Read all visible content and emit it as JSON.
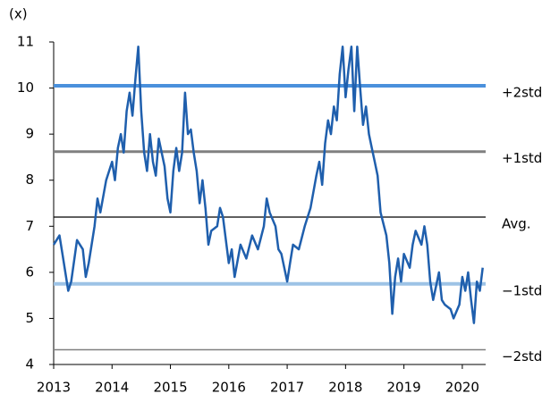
{
  "chart_data": {
    "type": "line",
    "y_unit_label": "(x)",
    "xlim": [
      2013,
      2020.4
    ],
    "xticks": [
      2013,
      2014,
      2015,
      2016,
      2017,
      2018,
      2019,
      2020
    ],
    "ylim": [
      4,
      11
    ],
    "yticks": [
      4,
      5,
      6,
      7,
      8,
      9,
      10,
      11
    ],
    "reference_lines": [
      {
        "name": "+2std",
        "value": 10.05,
        "color": "#4a90dc",
        "width": 4
      },
      {
        "name": "+1std",
        "value": 8.62,
        "color": "#808080",
        "width": 3
      },
      {
        "name": "Avg.",
        "value": 7.2,
        "color": "#000000",
        "width": 1.2
      },
      {
        "name": "−1std",
        "value": 5.75,
        "color": "#9dc3e6",
        "width": 4
      },
      {
        "name": "−2std",
        "value": 4.32,
        "color": "#808080",
        "width": 1.5
      }
    ],
    "series": [
      {
        "color": "#1f5fad",
        "x": [
          2013.0,
          2013.1,
          2013.15,
          2013.25,
          2013.3,
          2013.4,
          2013.5,
          2013.55,
          2013.6,
          2013.7,
          2013.75,
          2013.8,
          2013.9,
          2014.0,
          2014.05,
          2014.1,
          2014.15,
          2014.2,
          2014.25,
          2014.3,
          2014.35,
          2014.4,
          2014.45,
          2014.5,
          2014.55,
          2014.6,
          2014.65,
          2014.7,
          2014.75,
          2014.8,
          2014.9,
          2014.95,
          2015.0,
          2015.05,
          2015.1,
          2015.15,
          2015.2,
          2015.25,
          2015.3,
          2015.35,
          2015.4,
          2015.45,
          2015.5,
          2015.55,
          2015.6,
          2015.65,
          2015.7,
          2015.8,
          2015.85,
          2015.9,
          2016.0,
          2016.05,
          2016.1,
          2016.2,
          2016.3,
          2016.4,
          2016.5,
          2016.6,
          2016.65,
          2016.7,
          2016.8,
          2016.85,
          2016.9,
          2017.0,
          2017.05,
          2017.1,
          2017.2,
          2017.3,
          2017.4,
          2017.5,
          2017.55,
          2017.6,
          2017.65,
          2017.7,
          2017.75,
          2017.8,
          2017.85,
          2017.9,
          2017.95,
          2018.0,
          2018.05,
          2018.1,
          2018.15,
          2018.2,
          2018.25,
          2018.3,
          2018.35,
          2018.4,
          2018.45,
          2018.5,
          2018.55,
          2018.6,
          2018.7,
          2018.75,
          2018.8,
          2018.85,
          2018.9,
          2018.95,
          2019.0,
          2019.1,
          2019.15,
          2019.2,
          2019.3,
          2019.35,
          2019.4,
          2019.45,
          2019.5,
          2019.6,
          2019.65,
          2019.7,
          2019.8,
          2019.85,
          2019.95,
          2020.0,
          2020.05,
          2020.1,
          2020.15,
          2020.2,
          2020.25,
          2020.3,
          2020.35
        ],
        "values": [
          6.6,
          6.8,
          6.4,
          5.6,
          5.8,
          6.7,
          6.5,
          5.9,
          6.2,
          7.0,
          7.6,
          7.3,
          8.0,
          8.4,
          8.0,
          8.7,
          9.0,
          8.6,
          9.5,
          9.9,
          9.4,
          10.2,
          10.9,
          9.5,
          8.6,
          8.2,
          9.0,
          8.4,
          8.1,
          8.9,
          8.3,
          7.6,
          7.3,
          8.2,
          8.7,
          8.2,
          8.6,
          9.9,
          9.0,
          9.1,
          8.6,
          8.2,
          7.5,
          8.0,
          7.4,
          6.6,
          6.9,
          7.0,
          7.4,
          7.2,
          6.2,
          6.5,
          5.9,
          6.6,
          6.3,
          6.8,
          6.5,
          7.0,
          7.6,
          7.3,
          7.0,
          6.5,
          6.4,
          5.8,
          6.2,
          6.6,
          6.5,
          7.0,
          7.4,
          8.1,
          8.4,
          7.9,
          8.8,
          9.3,
          9.0,
          9.6,
          9.3,
          10.3,
          10.9,
          9.8,
          10.4,
          10.9,
          9.5,
          10.9,
          10.0,
          9.2,
          9.6,
          9.0,
          8.7,
          8.4,
          8.1,
          7.3,
          6.8,
          6.2,
          5.1,
          5.9,
          6.3,
          5.8,
          6.4,
          6.1,
          6.6,
          6.9,
          6.6,
          7.0,
          6.6,
          5.8,
          5.4,
          6.0,
          5.4,
          5.3,
          5.2,
          5.0,
          5.3,
          5.9,
          5.6,
          6.0,
          5.4,
          4.9,
          5.8,
          5.6,
          6.1
        ]
      }
    ]
  }
}
